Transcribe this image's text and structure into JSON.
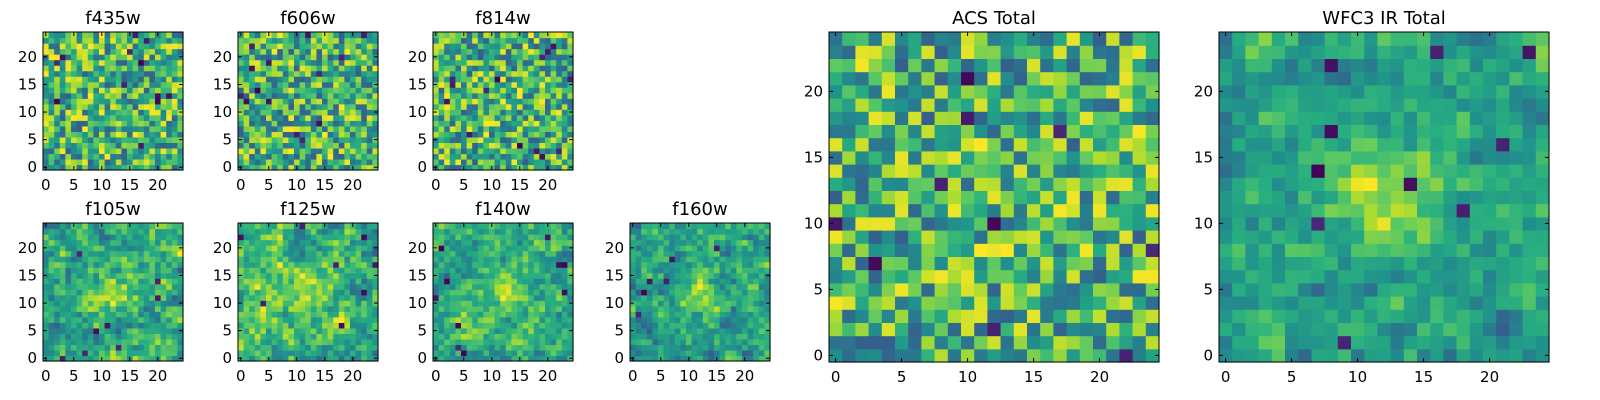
{
  "chart_data": {
    "type": "heatmap",
    "colormap": "viridis",
    "colors": {
      "viridis_stops": [
        "#440154",
        "#472d7b",
        "#3b528b",
        "#2c728e",
        "#21918c",
        "#28ae80",
        "#5ec962",
        "#addc30",
        "#fde725"
      ],
      "frame": "#000000",
      "background": "#ffffff"
    },
    "panels": [
      {
        "id": "f435w",
        "title": "f435w",
        "grid_size": 25,
        "xlim": [
          -0.5,
          24.5
        ],
        "ylim": [
          -0.5,
          24.5
        ],
        "xticks": [
          0,
          5,
          10,
          15,
          20
        ],
        "yticks": [
          0,
          5,
          10,
          15,
          20
        ],
        "seed": 11,
        "smoothing": 0,
        "blob": 0.0,
        "dark_spots": 12
      },
      {
        "id": "f606w",
        "title": "f606w",
        "grid_size": 25,
        "xlim": [
          -0.5,
          24.5
        ],
        "ylim": [
          -0.5,
          24.5
        ],
        "xticks": [
          0,
          5,
          10,
          15,
          20
        ],
        "yticks": [
          0,
          5,
          10,
          15,
          20
        ],
        "seed": 23,
        "smoothing": 0,
        "blob": 0.0,
        "dark_spots": 14
      },
      {
        "id": "f814w",
        "title": "f814w",
        "grid_size": 25,
        "xlim": [
          -0.5,
          24.5
        ],
        "ylim": [
          -0.5,
          24.5
        ],
        "xticks": [
          0,
          5,
          10,
          15,
          20
        ],
        "yticks": [
          0,
          5,
          10,
          15,
          20
        ],
        "seed": 37,
        "smoothing": 0,
        "blob": 0.05,
        "dark_spots": 14
      },
      {
        "id": "f105w",
        "title": "f105w",
        "grid_size": 25,
        "xlim": [
          -0.5,
          24.5
        ],
        "ylim": [
          -0.5,
          24.5
        ],
        "xticks": [
          0,
          5,
          10,
          15,
          20
        ],
        "yticks": [
          0,
          5,
          10,
          15,
          20
        ],
        "seed": 41,
        "smoothing": 1,
        "blob": 0.35,
        "dark_spots": 8
      },
      {
        "id": "f125w",
        "title": "f125w",
        "grid_size": 25,
        "xlim": [
          -0.5,
          24.5
        ],
        "ylim": [
          -0.5,
          24.5
        ],
        "xticks": [
          0,
          5,
          10,
          15,
          20
        ],
        "yticks": [
          0,
          5,
          10,
          15,
          20
        ],
        "seed": 53,
        "smoothing": 1,
        "blob": 0.2,
        "dark_spots": 8
      },
      {
        "id": "f140w",
        "title": "f140w",
        "grid_size": 25,
        "xlim": [
          -0.5,
          24.5
        ],
        "ylim": [
          -0.5,
          24.5
        ],
        "xticks": [
          0,
          5,
          10,
          15,
          20
        ],
        "yticks": [
          0,
          5,
          10,
          15,
          20
        ],
        "seed": 67,
        "smoothing": 1,
        "blob": 0.3,
        "dark_spots": 10
      },
      {
        "id": "f160w",
        "title": "f160w",
        "grid_size": 25,
        "xlim": [
          -0.5,
          24.5
        ],
        "ylim": [
          -0.5,
          24.5
        ],
        "xticks": [
          0,
          5,
          10,
          15,
          20
        ],
        "yticks": [
          0,
          5,
          10,
          15,
          20
        ],
        "seed": 79,
        "smoothing": 1,
        "blob": 0.35,
        "dark_spots": 6
      },
      {
        "id": "acs-total",
        "title": "ACS Total",
        "grid_size": 25,
        "xlim": [
          -0.5,
          24.5
        ],
        "ylim": [
          -0.5,
          24.5
        ],
        "xticks": [
          0,
          5,
          10,
          15,
          20
        ],
        "yticks": [
          0,
          5,
          10,
          15,
          20
        ],
        "seed": 97,
        "smoothing": 0,
        "blob": 0.05,
        "dark_spots": 10
      },
      {
        "id": "wfc3-ir-total",
        "title": "WFC3 IR Total",
        "grid_size": 25,
        "xlim": [
          -0.5,
          24.5
        ],
        "ylim": [
          -0.5,
          24.5
        ],
        "xticks": [
          0,
          5,
          10,
          15,
          20
        ],
        "yticks": [
          0,
          5,
          10,
          15,
          20
        ],
        "seed": 113,
        "smoothing": 1,
        "blob": 0.45,
        "dark_spots": 10
      }
    ]
  }
}
